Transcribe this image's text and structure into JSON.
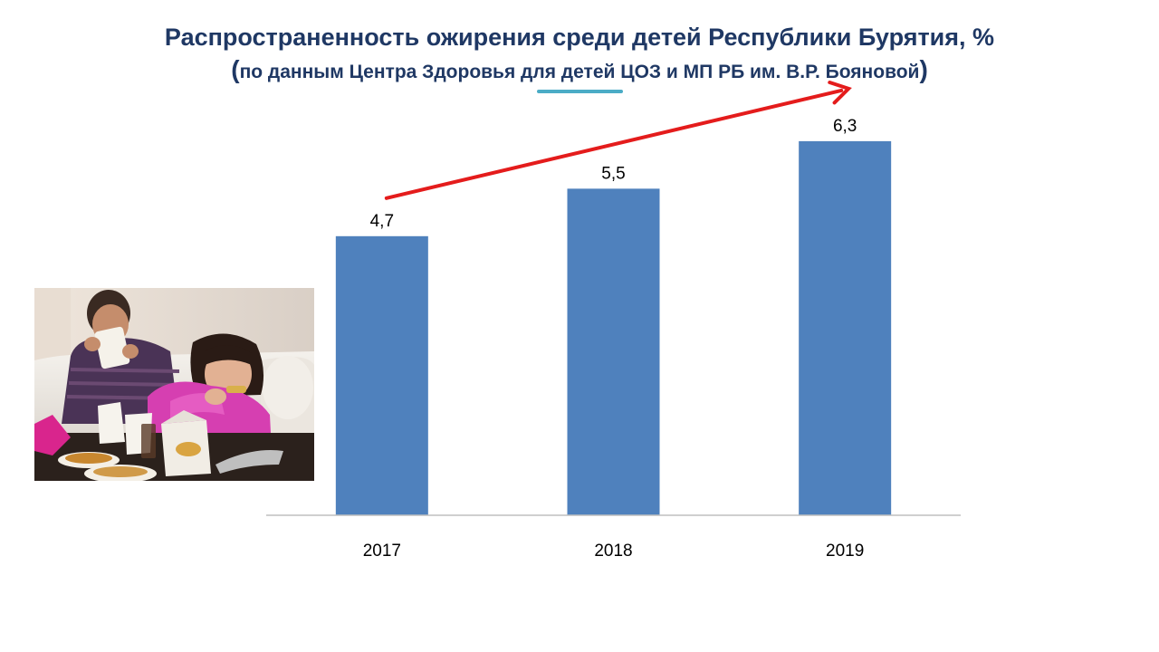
{
  "title": {
    "line1": "Распространенность  ожирения среди детей Республики Бурятия, %",
    "line2_open": "(",
    "line2_text": "по данным Центра Здоровья для детей ЦОЗ и МП РБ им. В.Р. Бояновой",
    "line2_close": ")"
  },
  "photo": {
    "icon": "children-eating-photo"
  },
  "colors": {
    "title": "#1f3864",
    "accent": "#4bacc6",
    "bar": "#4f81bd",
    "arrow": "#e41c1c",
    "axis": "#bfbfbf"
  },
  "chart_data": {
    "type": "bar",
    "categories": [
      "2017",
      "2018",
      "2019"
    ],
    "values": [
      4.7,
      5.5,
      6.3
    ],
    "value_labels": [
      "4,7",
      "5,5",
      "6,3"
    ],
    "title": "Распространенность  ожирения среди детей Республики Бурятия, %",
    "xlabel": "",
    "ylabel": "",
    "ylim": [
      0,
      7
    ],
    "grid": false,
    "legend": "none",
    "trend_arrow": "increasing"
  }
}
